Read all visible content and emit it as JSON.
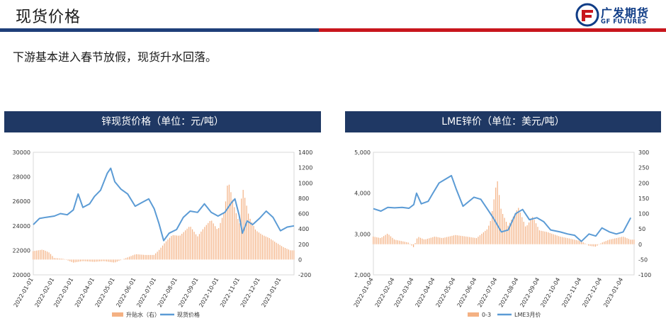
{
  "page_title": "现货价格",
  "logo": {
    "cn": "广发期货",
    "en": "GF FUTURES"
  },
  "subtitle": "下游基本进入春节放假，现货升水回落。",
  "colors": {
    "accent_blue": "#1f3f79",
    "accent_red": "#c8161d",
    "header_bg": "#1f3864",
    "line": "#5b9bd5",
    "bar": "#f4b183"
  },
  "chart_data": [
    {
      "type": "line+bar",
      "title": "锌现货价格（单位：元/吨）",
      "x_tick_labels": [
        "2022-01-01",
        "2022-02-01",
        "2022-03-01",
        "2022-04-01",
        "2022-05-01",
        "2022-06-01",
        "2022-07-01",
        "2022-08-01",
        "2022-09-01",
        "2022-10-01",
        "2022-11-01",
        "2022-12-01",
        "2023-01-01"
      ],
      "x_range": [
        "2022-01-01",
        "2023-01-20"
      ],
      "y_left": {
        "range": [
          20000,
          30000
        ],
        "ticks": [
          "20000",
          "22000",
          "24000",
          "26000",
          "28000",
          "30000"
        ]
      },
      "y_right": {
        "range": [
          -200,
          1400
        ],
        "ticks": [
          "-200",
          "0",
          "200",
          "400",
          "600",
          "800",
          "1000",
          "1200",
          "1400"
        ]
      },
      "legend": [
        "升贴水（右）",
        "现货价格"
      ],
      "legend_position": "bottom",
      "series": [
        {
          "name": "现货价格",
          "axis": "left",
          "kind": "line",
          "points": [
            [
              "2022-01-01",
              24100
            ],
            [
              "2022-01-10",
              24600
            ],
            [
              "2022-01-20",
              24700
            ],
            [
              "2022-02-01",
              24800
            ],
            [
              "2022-02-10",
              25000
            ],
            [
              "2022-02-20",
              24900
            ],
            [
              "2022-03-01",
              25300
            ],
            [
              "2022-03-08",
              26600
            ],
            [
              "2022-03-15",
              25500
            ],
            [
              "2022-03-25",
              25800
            ],
            [
              "2022-04-01",
              26400
            ],
            [
              "2022-04-10",
              26900
            ],
            [
              "2022-04-20",
              28300
            ],
            [
              "2022-04-25",
              28700
            ],
            [
              "2022-05-01",
              27600
            ],
            [
              "2022-05-10",
              27000
            ],
            [
              "2022-05-20",
              26600
            ],
            [
              "2022-05-31",
              25600
            ],
            [
              "2022-06-10",
              25900
            ],
            [
              "2022-06-20",
              26200
            ],
            [
              "2022-06-28",
              25400
            ],
            [
              "2022-07-05",
              24200
            ],
            [
              "2022-07-12",
              22800
            ],
            [
              "2022-07-20",
              23400
            ],
            [
              "2022-07-31",
              23700
            ],
            [
              "2022-08-10",
              24700
            ],
            [
              "2022-08-20",
              25200
            ],
            [
              "2022-08-31",
              25100
            ],
            [
              "2022-09-10",
              25800
            ],
            [
              "2022-09-20",
              25100
            ],
            [
              "2022-09-30",
              24800
            ],
            [
              "2022-10-10",
              25100
            ],
            [
              "2022-10-20",
              25900
            ],
            [
              "2022-10-25",
              26200
            ],
            [
              "2022-10-31",
              24900
            ],
            [
              "2022-11-05",
              23400
            ],
            [
              "2022-11-12",
              24400
            ],
            [
              "2022-11-20",
              24100
            ],
            [
              "2022-11-30",
              24600
            ],
            [
              "2022-12-10",
              25200
            ],
            [
              "2022-12-20",
              24700
            ],
            [
              "2022-12-31",
              23600
            ],
            [
              "2023-01-10",
              23900
            ],
            [
              "2023-01-20",
              24000
            ]
          ]
        },
        {
          "name": "升贴水（右）",
          "axis": "right",
          "kind": "bar",
          "points": [
            [
              "2022-01-01",
              110
            ],
            [
              "2022-01-15",
              130
            ],
            [
              "2022-01-25",
              90
            ],
            [
              "2022-02-01",
              20
            ],
            [
              "2022-02-15",
              10
            ],
            [
              "2022-03-01",
              -40
            ],
            [
              "2022-03-15",
              -20
            ],
            [
              "2022-04-01",
              -30
            ],
            [
              "2022-04-15",
              -20
            ],
            [
              "2022-05-01",
              -40
            ],
            [
              "2022-05-15",
              10
            ],
            [
              "2022-06-01",
              70
            ],
            [
              "2022-06-15",
              60
            ],
            [
              "2022-06-28",
              60
            ],
            [
              "2022-07-05",
              120
            ],
            [
              "2022-07-15",
              230
            ],
            [
              "2022-07-25",
              320
            ],
            [
              "2022-08-05",
              310
            ],
            [
              "2022-08-20",
              440
            ],
            [
              "2022-08-31",
              300
            ],
            [
              "2022-09-10",
              420
            ],
            [
              "2022-09-20",
              520
            ],
            [
              "2022-09-30",
              380
            ],
            [
              "2022-10-10",
              640
            ],
            [
              "2022-10-15",
              1040
            ],
            [
              "2022-10-25",
              660
            ],
            [
              "2022-11-01",
              460
            ],
            [
              "2022-11-05",
              960
            ],
            [
              "2022-11-15",
              560
            ],
            [
              "2022-11-25",
              380
            ],
            [
              "2022-12-05",
              320
            ],
            [
              "2022-12-15",
              280
            ],
            [
              "2022-12-25",
              220
            ],
            [
              "2023-01-05",
              160
            ],
            [
              "2023-01-15",
              120
            ]
          ]
        }
      ]
    },
    {
      "type": "line+bar",
      "title": "LME锌价（单位：美元/吨）",
      "x_tick_labels": [
        "2022-01-04",
        "2022-02-04",
        "2022-03-04",
        "2022-04-04",
        "2022-05-04",
        "2022-06-04",
        "2022-07-04",
        "2022-08-04",
        "2022-09-04",
        "2022-10-04",
        "2022-11-04",
        "2022-12-04",
        "2023-01-04"
      ],
      "x_range": [
        "2022-01-04",
        "2023-01-20"
      ],
      "y_left": {
        "range": [
          2000,
          5000
        ],
        "ticks": [
          "2,000",
          "3,000",
          "4,000",
          "5,000"
        ]
      },
      "y_right": {
        "range": [
          -100,
          300
        ],
        "ticks": [
          "-100",
          "-50",
          "0",
          "50",
          "100",
          "150",
          "200",
          "250",
          "300"
        ]
      },
      "legend": [
        "0-3",
        "LME3月价"
      ],
      "legend_position": "bottom",
      "series": [
        {
          "name": "LME3月价",
          "axis": "left",
          "kind": "line",
          "points": [
            [
              "2022-01-04",
              3620
            ],
            [
              "2022-01-15",
              3560
            ],
            [
              "2022-01-25",
              3650
            ],
            [
              "2022-02-04",
              3640
            ],
            [
              "2022-02-15",
              3650
            ],
            [
              "2022-02-25",
              3630
            ],
            [
              "2022-03-04",
              3720
            ],
            [
              "2022-03-08",
              4000
            ],
            [
              "2022-03-15",
              3740
            ],
            [
              "2022-03-25",
              3800
            ],
            [
              "2022-04-01",
              4000
            ],
            [
              "2022-04-10",
              4250
            ],
            [
              "2022-04-20",
              4350
            ],
            [
              "2022-04-28",
              4430
            ],
            [
              "2022-05-05",
              4100
            ],
            [
              "2022-05-15",
              3680
            ],
            [
              "2022-05-31",
              3900
            ],
            [
              "2022-06-10",
              3850
            ],
            [
              "2022-06-20",
              3600
            ],
            [
              "2022-06-28",
              3400
            ],
            [
              "2022-07-10",
              3050
            ],
            [
              "2022-07-20",
              3100
            ],
            [
              "2022-07-31",
              3500
            ],
            [
              "2022-08-10",
              3600
            ],
            [
              "2022-08-20",
              3350
            ],
            [
              "2022-08-31",
              3400
            ],
            [
              "2022-09-10",
              3300
            ],
            [
              "2022-09-20",
              3100
            ],
            [
              "2022-10-04",
              3050
            ],
            [
              "2022-10-15",
              3000
            ],
            [
              "2022-10-25",
              2970
            ],
            [
              "2022-11-04",
              2820
            ],
            [
              "2022-11-15",
              3000
            ],
            [
              "2022-11-25",
              2950
            ],
            [
              "2022-12-04",
              3150
            ],
            [
              "2022-12-15",
              3050
            ],
            [
              "2022-12-25",
              3000
            ],
            [
              "2023-01-04",
              3050
            ],
            [
              "2023-01-15",
              3400
            ]
          ]
        },
        {
          "name": "0-3",
          "axis": "right",
          "kind": "bar",
          "points": [
            [
              "2022-01-04",
              25
            ],
            [
              "2022-01-15",
              20
            ],
            [
              "2022-01-25",
              35
            ],
            [
              "2022-02-04",
              15
            ],
            [
              "2022-02-15",
              10
            ],
            [
              "2022-02-25",
              5
            ],
            [
              "2022-03-04",
              -10
            ],
            [
              "2022-03-10",
              25
            ],
            [
              "2022-03-20",
              15
            ],
            [
              "2022-04-04",
              25
            ],
            [
              "2022-04-15",
              20
            ],
            [
              "2022-05-04",
              30
            ],
            [
              "2022-05-20",
              25
            ],
            [
              "2022-06-04",
              20
            ],
            [
              "2022-06-20",
              50
            ],
            [
              "2022-06-25",
              80
            ],
            [
              "2022-07-04",
              215
            ],
            [
              "2022-07-10",
              110
            ],
            [
              "2022-07-20",
              60
            ],
            [
              "2022-08-04",
              120
            ],
            [
              "2022-08-15",
              55
            ],
            [
              "2022-08-25",
              90
            ],
            [
              "2022-09-04",
              45
            ],
            [
              "2022-09-15",
              40
            ],
            [
              "2022-10-04",
              25
            ],
            [
              "2022-10-15",
              20
            ],
            [
              "2022-11-04",
              10
            ],
            [
              "2022-11-15",
              -5
            ],
            [
              "2022-11-25",
              -8
            ],
            [
              "2022-12-04",
              5
            ],
            [
              "2022-12-15",
              15
            ],
            [
              "2022-12-25",
              20
            ],
            [
              "2023-01-04",
              25
            ],
            [
              "2023-01-15",
              15
            ]
          ]
        }
      ]
    }
  ]
}
